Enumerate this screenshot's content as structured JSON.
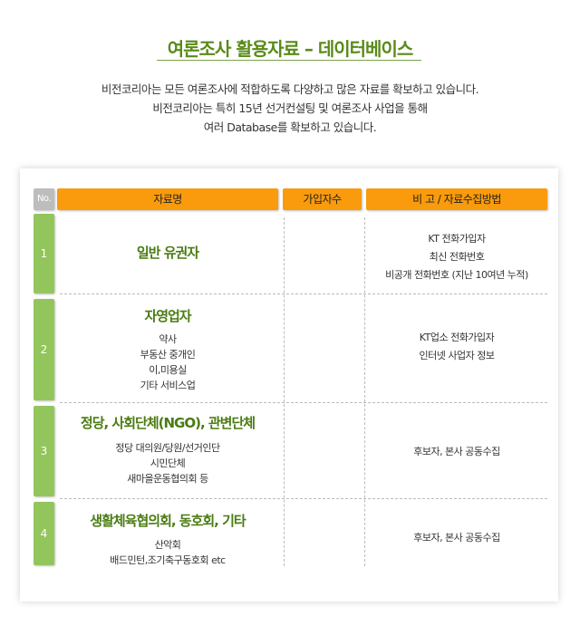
{
  "title": "여론조사 활용자료 – 데이터베이스",
  "intro": [
    "비전코리아는 모든 여론조사에 적합하도록 다양하고 많은 자료를 확보하고 있습니다.",
    "비전코리아는 특히 15년 선거컨설팅 및 여론조사 사업을 통해",
    "여러 Database를 확보하고 있습니다."
  ],
  "table": {
    "headers": [
      "No.",
      "자료명",
      "가입자수",
      "비 고 / 자료수집방법"
    ],
    "rows": [
      {
        "no": "1",
        "name": "일반 유권자",
        "details": [],
        "count": "",
        "notes": [
          "KT 전화가입자",
          "최신 전화번호",
          "비공개 전화번호 (지난 10여년 누적)"
        ]
      },
      {
        "no": "2",
        "name": "자영업자",
        "details": [
          "약사",
          "부동산 중개인",
          "이,미용실",
          "기타 서비스업"
        ],
        "count": "",
        "notes": [
          "KT업소 전화가입자",
          "인터넷 사업자 정보"
        ]
      },
      {
        "no": "3",
        "name": "정당, 사회단체(NGO), 관변단체",
        "details": [
          "정당 대의원/당원/선거인단",
          "시민단체",
          "새마을운동협의회 등"
        ],
        "count": "",
        "notes": [
          "후보자, 본사 공동수집"
        ]
      },
      {
        "no": "4",
        "name": "생활체육협의회, 동호회, 기타",
        "details": [
          "산악회",
          "배드민턴,조기축구동호회 etc"
        ],
        "count": "",
        "notes": [
          "후보자, 본사 공동수집"
        ]
      }
    ]
  },
  "colors": {
    "title": "#5a8a1a",
    "header": "#f99b0c",
    "number": "#92c65c"
  }
}
